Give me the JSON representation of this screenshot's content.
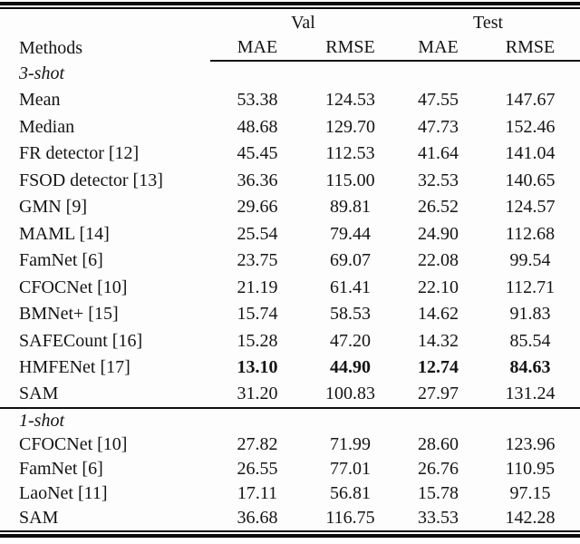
{
  "page": {
    "background": "#fdfdfd",
    "text_color": "#141414",
    "rule_color": "#0b0b0b"
  },
  "table": {
    "methods_header": "Methods",
    "group_headers": [
      "Val",
      "Test"
    ],
    "sub_headers": [
      "MAE",
      "RMSE",
      "MAE",
      "RMSE"
    ],
    "sections": [
      {
        "label": "3-shot",
        "rows": [
          {
            "method": "Mean",
            "values": [
              "53.38",
              "124.53",
              "47.55",
              "147.67"
            ],
            "bold": false
          },
          {
            "method": "Median",
            "values": [
              "48.68",
              "129.70",
              "47.73",
              "152.46"
            ],
            "bold": false
          },
          {
            "method": "FR detector [12]",
            "values": [
              "45.45",
              "112.53",
              "41.64",
              "141.04"
            ],
            "bold": false
          },
          {
            "method": "FSOD detector [13]",
            "values": [
              "36.36",
              "115.00",
              "32.53",
              "140.65"
            ],
            "bold": false
          },
          {
            "method": "GMN [9]",
            "values": [
              "29.66",
              "89.81",
              "26.52",
              "124.57"
            ],
            "bold": false
          },
          {
            "method": "MAML [14]",
            "values": [
              "25.54",
              "79.44",
              "24.90",
              "112.68"
            ],
            "bold": false
          },
          {
            "method": "FamNet [6]",
            "values": [
              "23.75",
              "69.07",
              "22.08",
              "99.54"
            ],
            "bold": false
          },
          {
            "method": "CFOCNet [10]",
            "values": [
              "21.19",
              "61.41",
              "22.10",
              "112.71"
            ],
            "bold": false
          },
          {
            "method": "BMNet+ [15]",
            "values": [
              "15.74",
              "58.53",
              "14.62",
              "91.83"
            ],
            "bold": false
          },
          {
            "method": "SAFECount [16]",
            "values": [
              "15.28",
              "47.20",
              "14.32",
              "85.54"
            ],
            "bold": false
          },
          {
            "method": "HMFENet [17]",
            "values": [
              "13.10",
              "44.90",
              "12.74",
              "84.63"
            ],
            "bold": true
          },
          {
            "method": "SAM",
            "values": [
              "31.20",
              "100.83",
              "27.97",
              "131.24"
            ],
            "bold": false
          }
        ]
      },
      {
        "label": "1-shot",
        "rows": [
          {
            "method": "CFOCNet [10]",
            "values": [
              "27.82",
              "71.99",
              "28.60",
              "123.96"
            ],
            "bold": false
          },
          {
            "method": "FamNet [6]",
            "values": [
              "26.55",
              "77.01",
              "26.76",
              "110.95"
            ],
            "bold": false
          },
          {
            "method": "LaoNet [11]",
            "values": [
              "17.11",
              "56.81",
              "15.78",
              "97.15"
            ],
            "bold": false
          },
          {
            "method": "SAM",
            "values": [
              "36.68",
              "116.75",
              "33.53",
              "142.28"
            ],
            "bold": false
          }
        ]
      }
    ]
  }
}
